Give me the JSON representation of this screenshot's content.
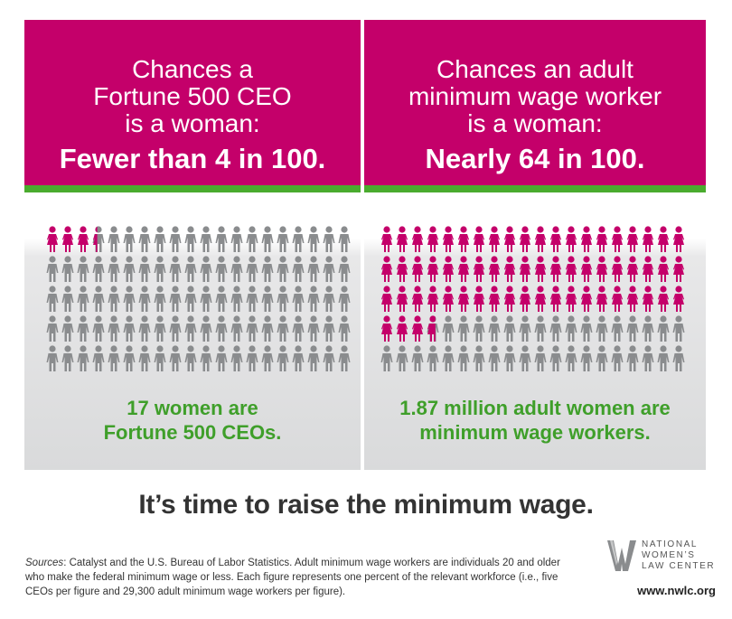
{
  "left_panel": {
    "heading_lines": [
      "Chances a",
      "Fortune 500 CEO",
      "is a woman:"
    ],
    "big_stat": "Fewer than 4 in 100.",
    "caption_lines": [
      "17 women are",
      "Fortune 500 CEOs."
    ],
    "women_figures": 3.4,
    "total_figures": 100
  },
  "right_panel": {
    "heading_lines": [
      "Chances an adult",
      "minimum wage worker",
      "is a woman:"
    ],
    "big_stat": "Nearly 64 in 100.",
    "caption_lines": [
      "1.87 million adult women are",
      "minimum wage workers."
    ],
    "women_figures": 63.7,
    "total_figures": 100
  },
  "tagline": "It’s time to raise the minimum wage.",
  "sources": {
    "label": "Sources",
    "text": ": Catalyst and the U.S. Bureau of Labor Statistics.  Adult minimum wage workers are individuals 20 and older who make the federal minimum wage or less.  Each figure represents one percent of the relevant workforce (i.e., five CEOs per figure and 29,300 adult minimum wage workers per figure)."
  },
  "logo": {
    "lines": [
      "NATIONAL",
      "WOMEN’S",
      "LAW CENTER"
    ],
    "icon": "nwlc-w-logo-icon"
  },
  "website": "www.nwlc.org",
  "colors": {
    "magenta": "#c4006a",
    "green_bar": "#4aab2e",
    "caption_green": "#3f9f2a",
    "figure_gray": "#8a8c8e"
  }
}
